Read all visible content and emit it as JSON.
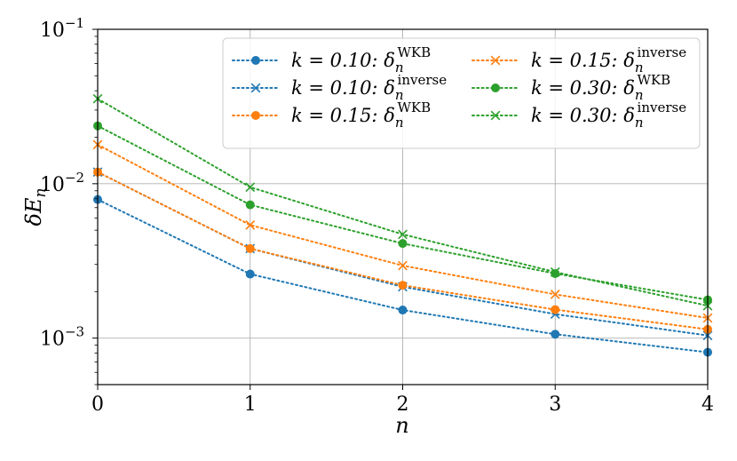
{
  "chart_data": {
    "type": "line",
    "xlabel": "n",
    "ylabel": "δE",
    "ylabel_sub": "n",
    "x": [
      0,
      1,
      2,
      3,
      4
    ],
    "xlim": [
      0,
      4
    ],
    "ylim": [
      0.0005,
      0.1
    ],
    "yscale": "log",
    "grid": true,
    "legend": "top-right",
    "x_ticks": [
      {
        "v": 0,
        "label": "0"
      },
      {
        "v": 1,
        "label": "1"
      },
      {
        "v": 2,
        "label": "2"
      },
      {
        "v": 3,
        "label": "3"
      },
      {
        "v": 4,
        "label": "4"
      }
    ],
    "y_ticks": [
      {
        "v": 0.001,
        "base": "10",
        "exp": "−3"
      },
      {
        "v": 0.01,
        "base": "10",
        "exp": "−2"
      },
      {
        "v": 0.1,
        "base": "10",
        "exp": "−1"
      }
    ],
    "series": [
      {
        "k": "k = 0.10:",
        "delta": "δ",
        "sub": "n",
        "sup": "WKB",
        "color": "#1f77b4",
        "marker": "circle",
        "values": [
          0.0079,
          0.0026,
          0.00152,
          0.00106,
          0.00081
        ]
      },
      {
        "k": "k = 0.10:",
        "delta": "δ",
        "sub": "n",
        "sup": "inverse",
        "color": "#1f77b4",
        "marker": "x",
        "values": [
          0.0119,
          0.0038,
          0.00215,
          0.00143,
          0.00104
        ]
      },
      {
        "k": "k = 0.15:",
        "delta": "δ",
        "sub": "n",
        "sup": "WKB",
        "color": "#ff7f0e",
        "marker": "circle",
        "values": [
          0.0119,
          0.0038,
          0.0022,
          0.00153,
          0.00114
        ]
      },
      {
        "k": "k = 0.15:",
        "delta": "δ",
        "sub": "n",
        "sup": "inverse",
        "color": "#ff7f0e",
        "marker": "x",
        "values": [
          0.0179,
          0.0054,
          0.00295,
          0.00192,
          0.00135
        ]
      },
      {
        "k": "k = 0.30:",
        "delta": "δ",
        "sub": "n",
        "sup": "WKB",
        "color": "#2ca02c",
        "marker": "circle",
        "values": [
          0.0237,
          0.0073,
          0.0041,
          0.00262,
          0.00177
        ]
      },
      {
        "k": "k = 0.30:",
        "delta": "δ",
        "sub": "n",
        "sup": "inverse",
        "color": "#2ca02c",
        "marker": "x",
        "values": [
          0.0355,
          0.0095,
          0.0047,
          0.00268,
          0.00162
        ]
      }
    ]
  }
}
